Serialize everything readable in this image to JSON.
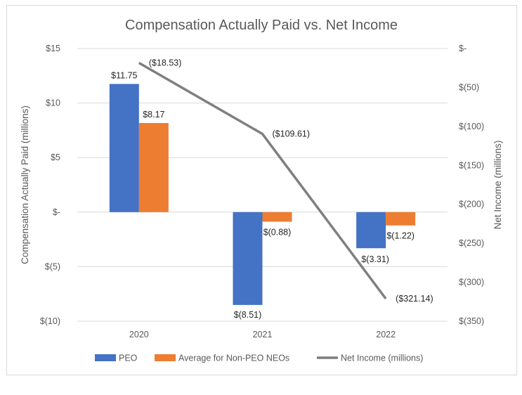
{
  "chart_data": {
    "type": "bar",
    "title": "Compensation Actually Paid vs. Net Income",
    "categories": [
      "2020",
      "2021",
      "2022"
    ],
    "ylabel": "Compensation Actually Paid (millions)",
    "y2label": "Net Income (millions)",
    "ylim": [
      -10,
      15
    ],
    "y2lim": [
      -350,
      0
    ],
    "yticks": [
      15,
      10,
      5,
      0,
      -5,
      -10
    ],
    "ytick_labels": [
      "$15",
      "$10",
      "$5",
      "$-",
      "$(5)",
      "$(10)"
    ],
    "y2ticks": [
      0,
      -50,
      -100,
      -150,
      -200,
      -250,
      -300,
      -350
    ],
    "y2tick_labels": [
      "$-",
      "$(50)",
      "$(100)",
      "$(150)",
      "$(200)",
      "$(250)",
      "$(300)",
      "$(350)"
    ],
    "grid": true,
    "legend_position": "bottom",
    "series": [
      {
        "name": "PEO",
        "kind": "bar",
        "axis": "left",
        "color": "#4472c4",
        "values": [
          11.75,
          -8.51,
          -3.31
        ],
        "labels": [
          "$11.75",
          "$(8.51)",
          "$(3.31)"
        ]
      },
      {
        "name": "Average for Non-PEO NEOs",
        "kind": "bar",
        "axis": "left",
        "color": "#ed7d31",
        "values": [
          8.17,
          -0.88,
          -1.22
        ],
        "labels": [
          "$8.17",
          "$(0.88)",
          "$(1.22)"
        ]
      },
      {
        "name": "Net Income (millions)",
        "kind": "line",
        "axis": "right",
        "color": "#7f7f7f",
        "values": [
          -18.53,
          -109.61,
          -321.14
        ],
        "labels": [
          "($18.53)",
          "($109.61)",
          "($321.14)"
        ]
      }
    ]
  }
}
